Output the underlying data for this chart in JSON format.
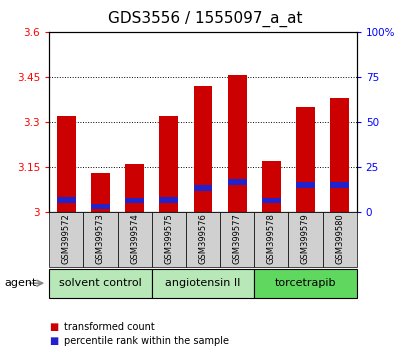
{
  "title": "GDS3556 / 1555097_a_at",
  "samples": [
    "GSM399572",
    "GSM399573",
    "GSM399574",
    "GSM399575",
    "GSM399576",
    "GSM399577",
    "GSM399578",
    "GSM399579",
    "GSM399580"
  ],
  "red_tops": [
    3.32,
    3.13,
    3.16,
    3.32,
    3.42,
    3.455,
    3.17,
    3.35,
    3.38
  ],
  "blue_bottoms": [
    3.03,
    3.01,
    3.03,
    3.03,
    3.07,
    3.09,
    3.03,
    3.08,
    3.08
  ],
  "blue_heights": [
    0.02,
    0.018,
    0.018,
    0.02,
    0.022,
    0.022,
    0.018,
    0.022,
    0.022
  ],
  "bar_base": 3.0,
  "ylim_left": [
    3.0,
    3.6
  ],
  "ylim_right": [
    0,
    100
  ],
  "yticks_left": [
    3.0,
    3.15,
    3.3,
    3.45,
    3.6
  ],
  "yticks_right": [
    0,
    25,
    50,
    75,
    100
  ],
  "ytick_labels_left": [
    "3",
    "3.15",
    "3.3",
    "3.45",
    "3.6"
  ],
  "ytick_labels_right": [
    "0",
    "25",
    "50",
    "75",
    "100%"
  ],
  "gridlines": [
    3.15,
    3.3,
    3.45
  ],
  "groups": [
    {
      "label": "solvent control",
      "start": 0,
      "end": 2,
      "color": "#b8e8b8"
    },
    {
      "label": "angiotensin II",
      "start": 3,
      "end": 5,
      "color": "#b8e8b8"
    },
    {
      "label": "torcetrapib",
      "start": 6,
      "end": 8,
      "color": "#60d860"
    }
  ],
  "red_color": "#cc0000",
  "blue_color": "#2222cc",
  "bar_width": 0.55,
  "legend_red": "transformed count",
  "legend_blue": "percentile rank within the sample",
  "agent_label": "agent",
  "title_fontsize": 11,
  "tick_fontsize": 7.5,
  "group_fontsize": 8,
  "label_fontsize": 6
}
